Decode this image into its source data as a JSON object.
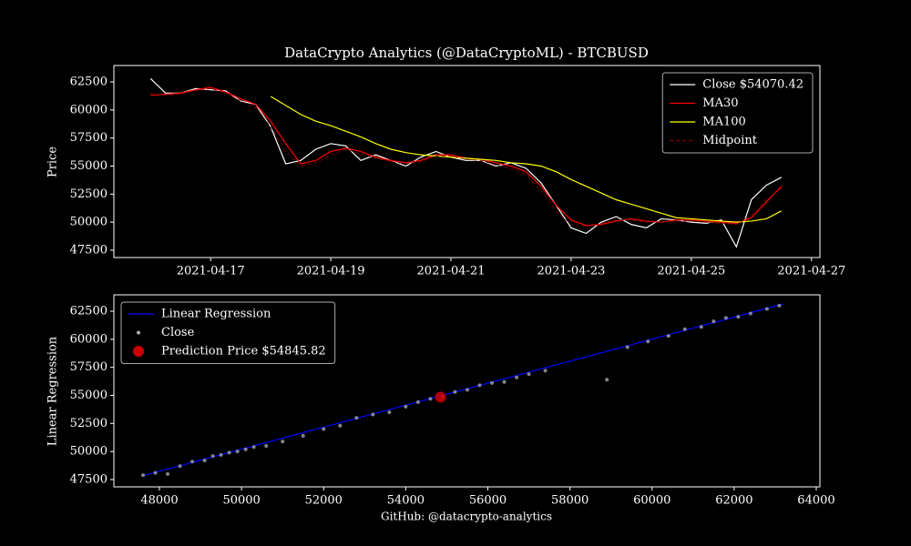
{
  "chart_data": [
    {
      "type": "line",
      "title": "DataCrypto Analytics (@DataCryptoML) - BTCBUSD",
      "y_label": "Price",
      "x": [
        18733.0,
        18733.25,
        18733.5,
        18733.75,
        18734.0,
        18734.25,
        18734.5,
        18734.75,
        18735.0,
        18735.25,
        18735.5,
        18735.75,
        18736.0,
        18736.25,
        18736.5,
        18736.75,
        18737.0,
        18737.25,
        18737.5,
        18737.75,
        18738.0,
        18738.25,
        18738.5,
        18738.75,
        18739.0,
        18739.25,
        18739.5,
        18739.75,
        18740.0,
        18740.25,
        18740.5,
        18740.75,
        18741.0,
        18741.25,
        18741.5,
        18741.75,
        18742.0,
        18742.25,
        18742.5,
        18742.75,
        18743.0,
        18743.25,
        18743.5
      ],
      "series": [
        {
          "name": "Close $54070.42",
          "color": "#ffffff",
          "linestyle": "solid",
          "values": [
            62800,
            61500,
            61500,
            61900,
            61800,
            61700,
            60800,
            60500,
            58500,
            55200,
            55500,
            56500,
            57000,
            56800,
            55500,
            56000,
            55500,
            55000,
            55800,
            56300,
            55800,
            55500,
            55500,
            55000,
            55300,
            54800,
            53500,
            51500,
            49500,
            49000,
            50000,
            50500,
            49800,
            49500,
            50300,
            50200,
            50000,
            49900,
            50200,
            47800,
            52000,
            53300,
            54000
          ]
        },
        {
          "name": "MA30",
          "color": "#ff0000",
          "linestyle": "solid",
          "values": [
            61300,
            61400,
            61500,
            61800,
            62000,
            61600,
            61000,
            60500,
            59000,
            57000,
            55200,
            55500,
            56300,
            56600,
            56300,
            55800,
            55500,
            55300,
            55500,
            56000,
            56000,
            55700,
            55600,
            55300,
            55000,
            54500,
            53200,
            51500,
            50200,
            49700,
            49800,
            50100,
            50300,
            50100,
            50000,
            50200,
            50200,
            50100,
            50000,
            49900,
            50400,
            51800,
            53200
          ]
        },
        {
          "name": "MA100",
          "color": "#ffff00",
          "linestyle": "solid",
          "values": [
            null,
            null,
            null,
            null,
            null,
            null,
            null,
            null,
            61200,
            60400,
            59600,
            59000,
            58600,
            58100,
            57600,
            57000,
            56500,
            56200,
            56000,
            55900,
            55800,
            55700,
            55600,
            55500,
            55300,
            55200,
            55000,
            54500,
            53800,
            53200,
            52600,
            52000,
            51600,
            51200,
            50800,
            50400,
            50300,
            50200,
            50100,
            50000,
            50100,
            50300,
            51000
          ]
        },
        {
          "name": "Midpoint",
          "color": "#8b0000",
          "linestyle": "dashed",
          "values": [
            61500,
            61300,
            61400,
            61700,
            61900,
            61500,
            60800,
            60200,
            58500,
            56300,
            55000,
            55300,
            56000,
            56500,
            56100,
            55700,
            55400,
            55200,
            55400,
            55900,
            55900,
            55600,
            55500,
            55100,
            54800,
            54200,
            52800,
            51000,
            49800,
            49600,
            49900,
            50200,
            50200,
            50000,
            50000,
            50100,
            50100,
            50000,
            49900,
            49800,
            50600,
            52000,
            53000
          ]
        }
      ],
      "xlim": [
        18732.39,
        18744.14
      ],
      "xticks": [
        {
          "value": 18734,
          "label": "2021-04-17"
        },
        {
          "value": 18736,
          "label": "2021-04-19"
        },
        {
          "value": 18738,
          "label": "2021-04-21"
        },
        {
          "value": 18740,
          "label": "2021-04-23"
        },
        {
          "value": 18742,
          "label": "2021-04-25"
        },
        {
          "value": 18744,
          "label": "2021-04-27"
        }
      ],
      "ylim": [
        46851,
        63959
      ],
      "yticks": [
        47500,
        50000,
        52500,
        55000,
        57500,
        60000,
        62500
      ],
      "legend": "upper right"
    },
    {
      "type": "scatter",
      "y_label": "Linear Regression",
      "x_label": "GitHub: @datacrypto-analytics",
      "series": [
        {
          "name": "Linear Regression",
          "type": "line",
          "color": "#0000ff",
          "x": [
            47600,
            63200
          ],
          "values": [
            47850,
            63150
          ]
        },
        {
          "name": "Close",
          "type": "scatter",
          "color": "#b0b0b0",
          "x": [
            47600,
            47900,
            48200,
            48500,
            48800,
            49100,
            49300,
            49500,
            49700,
            49900,
            50100,
            50300,
            50600,
            51000,
            51500,
            52000,
            52400,
            52800,
            53200,
            53600,
            54000,
            54300,
            54600,
            54900,
            55200,
            55500,
            55800,
            56100,
            56400,
            56700,
            57000,
            57400,
            58900,
            59400,
            59900,
            60400,
            60800,
            61200,
            61500,
            61800,
            62100,
            62400,
            62800,
            63100
          ],
          "values": [
            47900,
            48100,
            48000,
            48700,
            49100,
            49200,
            49600,
            49700,
            49900,
            50000,
            50200,
            50400,
            50500,
            50900,
            51400,
            52000,
            52300,
            53000,
            53300,
            53500,
            54000,
            54400,
            54700,
            54900,
            55300,
            55500,
            55900,
            56100,
            56200,
            56600,
            56900,
            57200,
            56400,
            59300,
            59800,
            60300,
            60900,
            61100,
            61600,
            61900,
            62000,
            62300,
            62700,
            63000
          ]
        },
        {
          "name": "Prediction Price $54845.82",
          "type": "point",
          "color": "#cc0000",
          "x": [
            54846
          ],
          "values": [
            54846
          ]
        }
      ],
      "xlim": [
        46890,
        64089
      ],
      "xticks": [
        48000,
        50000,
        52000,
        54000,
        56000,
        58000,
        60000,
        62000,
        64000
      ],
      "ylim": [
        46851,
        63960
      ],
      "yticks": [
        47500,
        50000,
        52500,
        55000,
        57500,
        60000,
        62500
      ],
      "legend": "upper left"
    }
  ]
}
